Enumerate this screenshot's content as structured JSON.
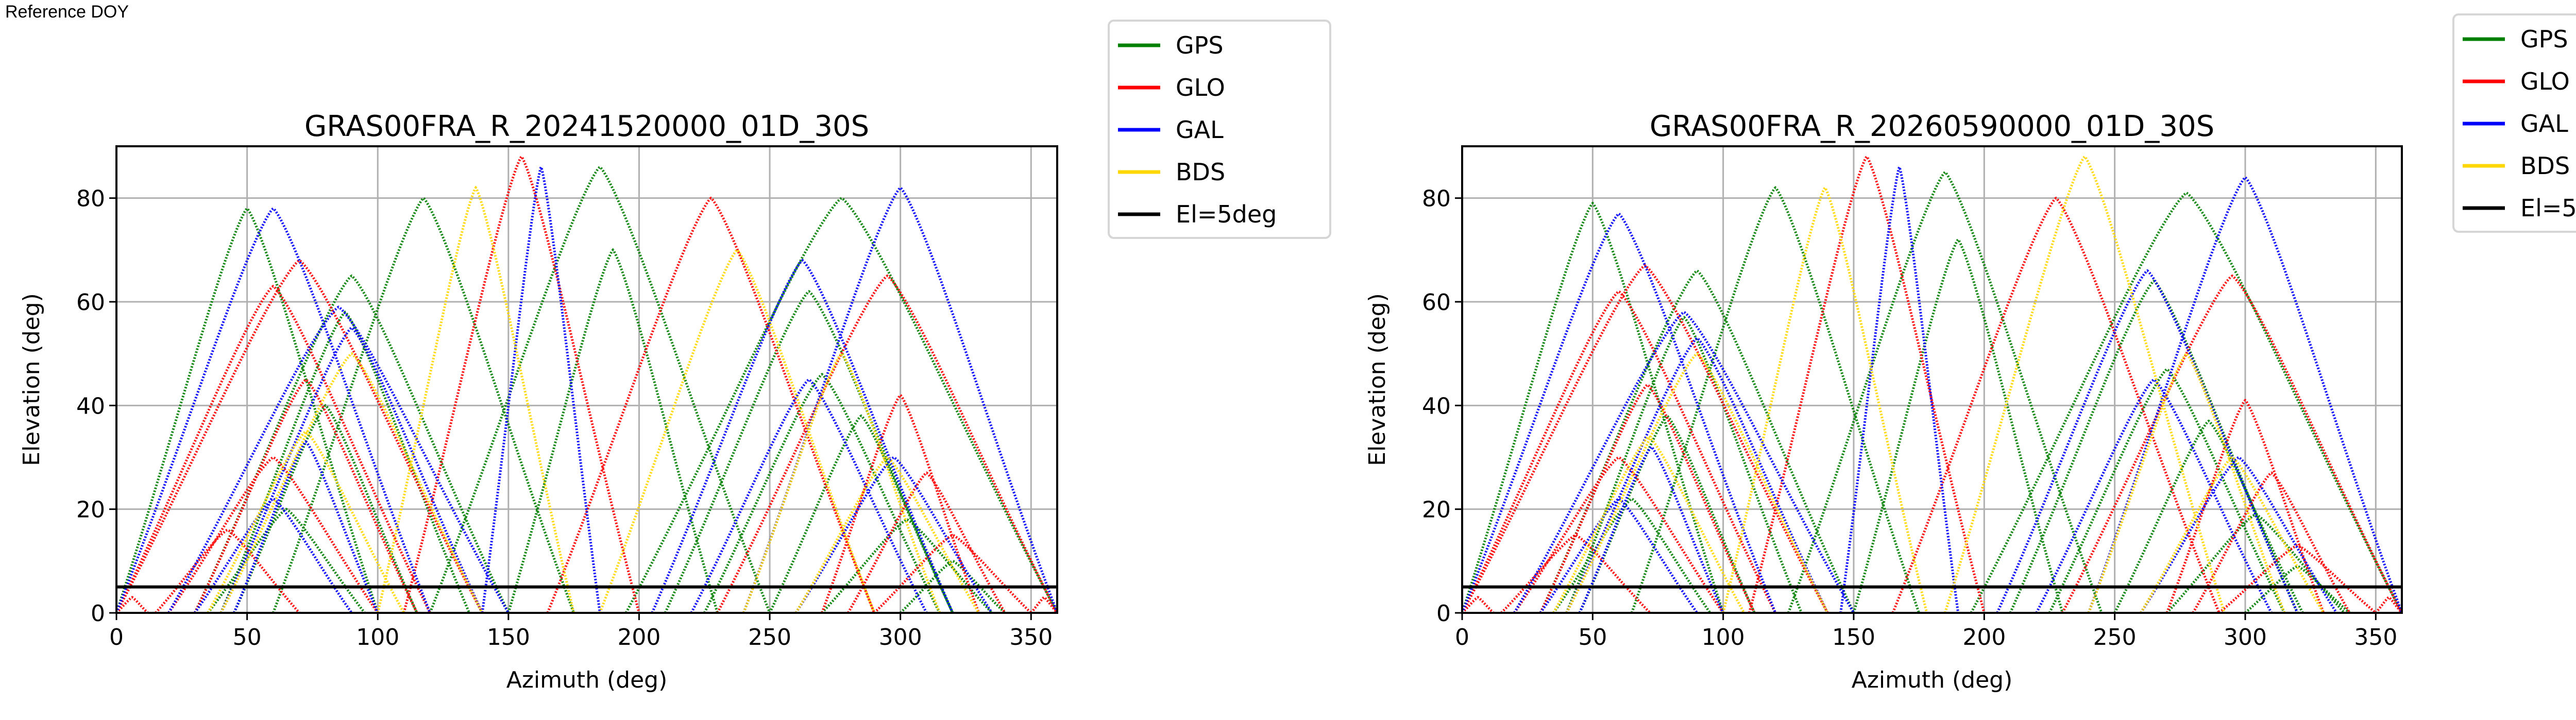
{
  "header": {
    "label": "Reference DOY"
  },
  "legend": {
    "entries": [
      {
        "label": "GPS",
        "color": "#008000"
      },
      {
        "label": "GLO",
        "color": "#ff0000"
      },
      {
        "label": "GAL",
        "color": "#0000ff"
      },
      {
        "label": "BDS",
        "color": "#ffd700"
      },
      {
        "label": "El=5deg",
        "color": "#000000"
      }
    ]
  },
  "chart_data": [
    {
      "type": "scatter",
      "title": "GRAS00FRA_R_20241520000_01D_30S",
      "xlabel": "Azimuth (deg)",
      "ylabel": "Elevation (deg)",
      "xlim": [
        0,
        360
      ],
      "ylim": [
        0,
        90
      ],
      "xticks": [
        "0",
        "50",
        "100",
        "150",
        "200",
        "250",
        "300",
        "350"
      ],
      "yticks": [
        "0",
        "20",
        "40",
        "60",
        "80"
      ],
      "grid": true,
      "legend_position": "outside-top-right",
      "reference_line": {
        "elevation": 5,
        "label": "El=5deg"
      },
      "series": [
        {
          "name": "GPS",
          "color": "#008000",
          "passes": [
            {
              "az_rise": 30,
              "az_set": 150,
              "max_el": 65
            },
            {
              "az_rise": 40,
              "az_set": 135,
              "max_el": 58
            },
            {
              "az_rise": 45,
              "az_set": 115,
              "max_el": 40
            },
            {
              "az_rise": 35,
              "az_set": 95,
              "max_el": 20
            },
            {
              "az_rise": 60,
              "az_set": 175,
              "max_el": 80
            },
            {
              "az_rise": 120,
              "az_set": 250,
              "max_el": 86
            },
            {
              "az_rise": 210,
              "az_set": 320,
              "max_el": 62
            },
            {
              "az_rise": 225,
              "az_set": 315,
              "max_el": 46
            },
            {
              "az_rise": 250,
              "az_set": 320,
              "max_el": 38
            },
            {
              "az_rise": 270,
              "az_set": 335,
              "max_el": 18
            },
            {
              "az_rise": 195,
              "az_set": 360,
              "max_el": 80
            },
            {
              "az_rise": 0,
              "az_set": 100,
              "max_el": 78
            },
            {
              "az_rise": 150,
              "az_set": 230,
              "max_el": 70
            },
            {
              "az_rise": 300,
              "az_set": 340,
              "max_el": 10
            }
          ]
        },
        {
          "name": "GLO",
          "color": "#ff0000",
          "passes": [
            {
              "az_rise": 15,
              "az_set": 70,
              "max_el": 16
            },
            {
              "az_rise": 20,
              "az_set": 100,
              "max_el": 30
            },
            {
              "az_rise": 30,
              "az_set": 115,
              "max_el": 45
            },
            {
              "az_rise": 0,
              "az_set": 140,
              "max_el": 68
            },
            {
              "az_rise": 0,
              "az_set": 120,
              "max_el": 63
            },
            {
              "az_rise": 110,
              "az_set": 200,
              "max_el": 88
            },
            {
              "az_rise": 165,
              "az_set": 290,
              "max_el": 80
            },
            {
              "az_rise": 270,
              "az_set": 330,
              "max_el": 42
            },
            {
              "az_rise": 280,
              "az_set": 340,
              "max_el": 27
            },
            {
              "az_rise": 290,
              "az_set": 350,
              "max_el": 15
            },
            {
              "az_rise": 230,
              "az_set": 360,
              "max_el": 65
            },
            {
              "az_rise": 0,
              "az_set": 12,
              "max_el": 3
            },
            {
              "az_rise": 350,
              "az_set": 360,
              "max_el": 3
            }
          ]
        },
        {
          "name": "GAL",
          "color": "#0000ff",
          "passes": [
            {
              "az_rise": 20,
              "az_set": 150,
              "max_el": 59
            },
            {
              "az_rise": 40,
              "az_set": 140,
              "max_el": 55
            },
            {
              "az_rise": 45,
              "az_set": 100,
              "max_el": 33
            },
            {
              "az_rise": 30,
              "az_set": 90,
              "max_el": 22
            },
            {
              "az_rise": 140,
              "az_set": 185,
              "max_el": 86
            },
            {
              "az_rise": 205,
              "az_set": 320,
              "max_el": 68
            },
            {
              "az_rise": 220,
              "az_set": 310,
              "max_el": 45
            },
            {
              "az_rise": 260,
              "az_set": 335,
              "max_el": 30
            },
            {
              "az_rise": 0,
              "az_set": 120,
              "max_el": 78
            },
            {
              "az_rise": 240,
              "az_set": 360,
              "max_el": 82
            }
          ]
        },
        {
          "name": "BDS",
          "color": "#ffd700",
          "passes": [
            {
              "az_rise": 35,
              "az_set": 110,
              "max_el": 35
            },
            {
              "az_rise": 40,
              "az_set": 140,
              "max_el": 50
            },
            {
              "az_rise": 100,
              "az_set": 175,
              "max_el": 82
            },
            {
              "az_rise": 185,
              "az_set": 290,
              "max_el": 70
            },
            {
              "az_rise": 240,
              "az_set": 315,
              "max_el": 50
            },
            {
              "az_rise": 260,
              "az_set": 330,
              "max_el": 30
            }
          ]
        }
      ]
    },
    {
      "type": "scatter",
      "title": "GRAS00FRA_R_20260590000_01D_30S",
      "xlabel": "Azimuth (deg)",
      "ylabel": "Elevation (deg)",
      "xlim": [
        0,
        360
      ],
      "ylim": [
        0,
        90
      ],
      "xticks": [
        "0",
        "50",
        "100",
        "150",
        "200",
        "250",
        "300",
        "350"
      ],
      "yticks": [
        "0",
        "20",
        "40",
        "60",
        "80"
      ],
      "grid": true,
      "legend_position": "outside-top-right",
      "reference_line": {
        "elevation": 5,
        "label": "El=5deg"
      },
      "series": [
        {
          "name": "GPS",
          "color": "#008000",
          "passes": [
            {
              "az_rise": 30,
              "az_set": 150,
              "max_el": 66
            },
            {
              "az_rise": 40,
              "az_set": 130,
              "max_el": 57
            },
            {
              "az_rise": 45,
              "az_set": 112,
              "max_el": 38
            },
            {
              "az_rise": 35,
              "az_set": 95,
              "max_el": 22
            },
            {
              "az_rise": 65,
              "az_set": 175,
              "max_el": 82
            },
            {
              "az_rise": 125,
              "az_set": 245,
              "max_el": 85
            },
            {
              "az_rise": 210,
              "az_set": 320,
              "max_el": 64
            },
            {
              "az_rise": 225,
              "az_set": 315,
              "max_el": 47
            },
            {
              "az_rise": 250,
              "az_set": 322,
              "max_el": 37
            },
            {
              "az_rise": 270,
              "az_set": 338,
              "max_el": 19
            },
            {
              "az_rise": 195,
              "az_set": 360,
              "max_el": 81
            },
            {
              "az_rise": 0,
              "az_set": 100,
              "max_el": 79
            },
            {
              "az_rise": 150,
              "az_set": 230,
              "max_el": 72
            },
            {
              "az_rise": 300,
              "az_set": 340,
              "max_el": 9
            }
          ]
        },
        {
          "name": "GLO",
          "color": "#ff0000",
          "passes": [
            {
              "az_rise": 15,
              "az_set": 72,
              "max_el": 15
            },
            {
              "az_rise": 20,
              "az_set": 100,
              "max_el": 30
            },
            {
              "az_rise": 30,
              "az_set": 112,
              "max_el": 44
            },
            {
              "az_rise": 0,
              "az_set": 140,
              "max_el": 67
            },
            {
              "az_rise": 0,
              "az_set": 120,
              "max_el": 62
            },
            {
              "az_rise": 110,
              "az_set": 200,
              "max_el": 88
            },
            {
              "az_rise": 165,
              "az_set": 290,
              "max_el": 80
            },
            {
              "az_rise": 270,
              "az_set": 330,
              "max_el": 41
            },
            {
              "az_rise": 280,
              "az_set": 340,
              "max_el": 27
            },
            {
              "az_rise": 290,
              "az_set": 350,
              "max_el": 13
            },
            {
              "az_rise": 230,
              "az_set": 360,
              "max_el": 65
            },
            {
              "az_rise": 0,
              "az_set": 12,
              "max_el": 3
            },
            {
              "az_rise": 350,
              "az_set": 360,
              "max_el": 3
            }
          ]
        },
        {
          "name": "GAL",
          "color": "#0000ff",
          "passes": [
            {
              "az_rise": 20,
              "az_set": 150,
              "max_el": 58
            },
            {
              "az_rise": 40,
              "az_set": 140,
              "max_el": 53
            },
            {
              "az_rise": 45,
              "az_set": 100,
              "max_el": 32
            },
            {
              "az_rise": 30,
              "az_set": 90,
              "max_el": 22
            },
            {
              "az_rise": 145,
              "az_set": 190,
              "max_el": 86
            },
            {
              "az_rise": 205,
              "az_set": 320,
              "max_el": 66
            },
            {
              "az_rise": 220,
              "az_set": 310,
              "max_el": 45
            },
            {
              "az_rise": 260,
              "az_set": 335,
              "max_el": 30
            },
            {
              "az_rise": 0,
              "az_set": 120,
              "max_el": 77
            },
            {
              "az_rise": 240,
              "az_set": 360,
              "max_el": 84
            }
          ]
        },
        {
          "name": "BDS",
          "color": "#ffd700",
          "passes": [
            {
              "az_rise": 35,
              "az_set": 108,
              "max_el": 34
            },
            {
              "az_rise": 40,
              "az_set": 140,
              "max_el": 50
            },
            {
              "az_rise": 100,
              "az_set": 178,
              "max_el": 82
            },
            {
              "az_rise": 185,
              "az_set": 292,
              "max_el": 88
            },
            {
              "az_rise": 240,
              "az_set": 315,
              "max_el": 50
            },
            {
              "az_rise": 260,
              "az_set": 330,
              "max_el": 30
            }
          ]
        }
      ]
    }
  ]
}
